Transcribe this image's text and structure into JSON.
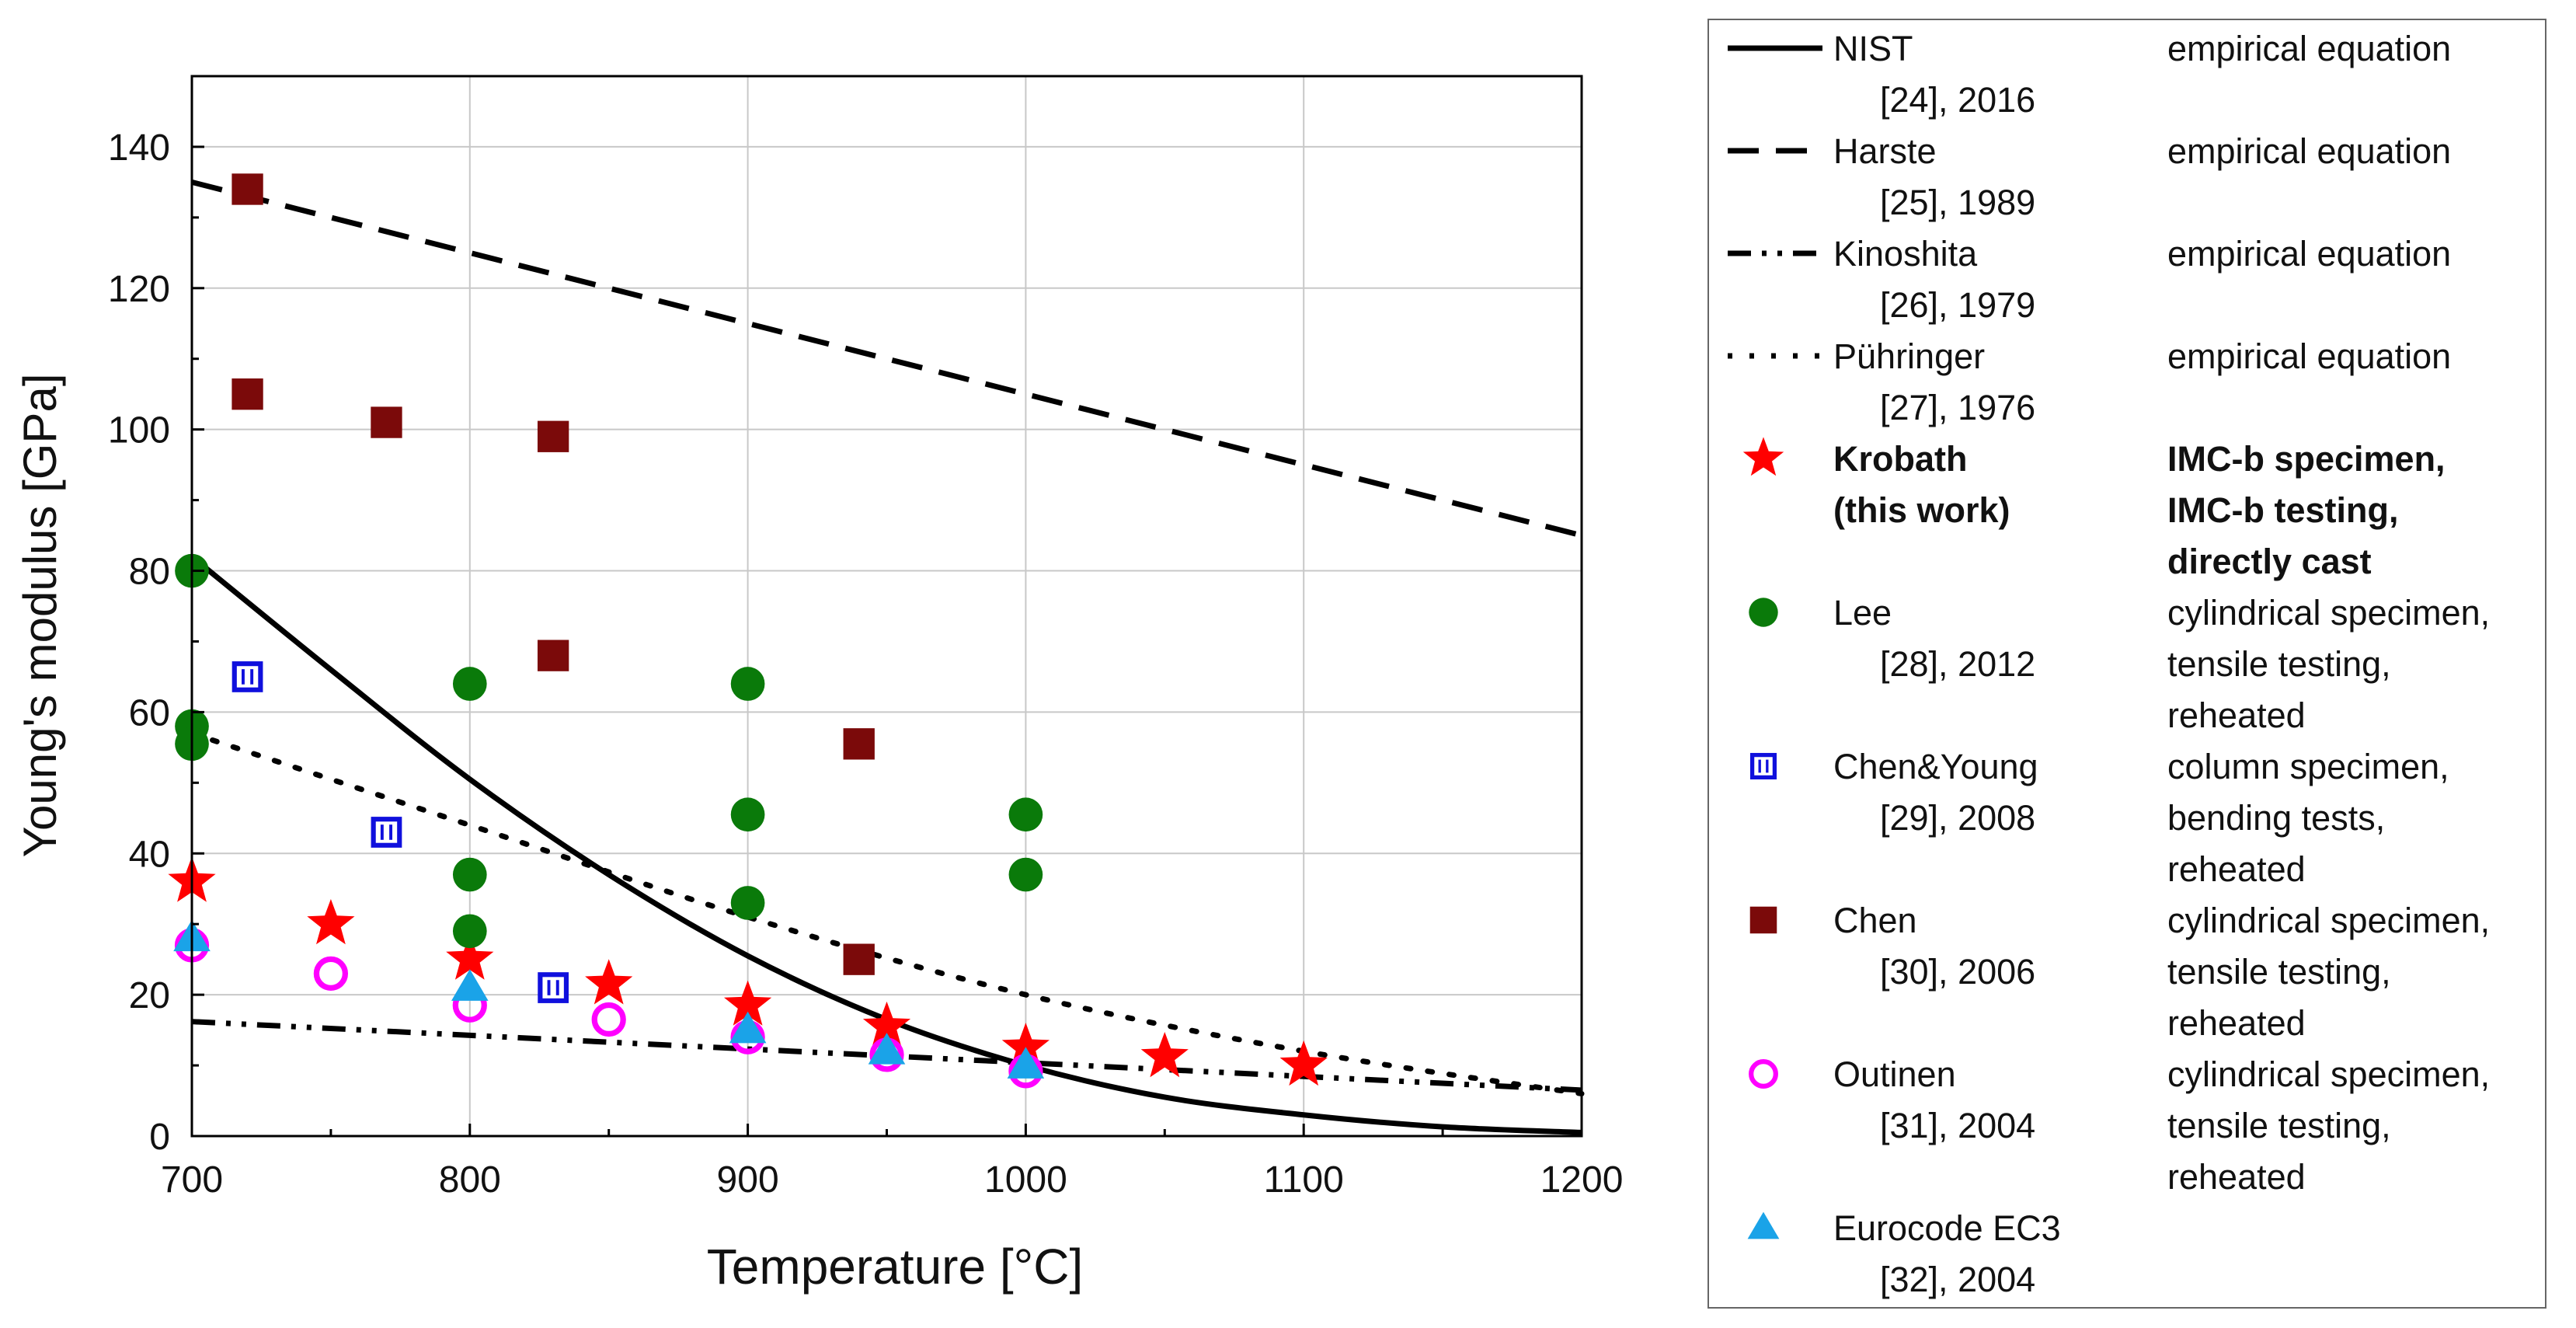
{
  "chart_data": {
    "type": "scatter",
    "xlabel": "Temperature [°C]",
    "ylabel": "Young's modulus [GPa]",
    "xlim": [
      700,
      1200
    ],
    "ylim": [
      0,
      150
    ],
    "xticks": [
      700,
      800,
      900,
      1000,
      1100,
      1200
    ],
    "yticks": [
      0,
      20,
      40,
      60,
      80,
      100,
      120,
      140
    ],
    "grid": true,
    "legend_position": "right, outside plot",
    "series": [
      {
        "name": "NIST",
        "ref": "[24], 2016",
        "desc": [
          "empirical equation"
        ],
        "kind": "line",
        "style": "solid",
        "color": "#000000",
        "x": [
          700,
          750,
          800,
          850,
          900,
          950,
          1000,
          1050,
          1100,
          1150,
          1200
        ],
        "y": [
          82,
          66,
          50.5,
          37,
          25.5,
          16.5,
          10,
          5.5,
          3,
          1.3,
          0.5
        ]
      },
      {
        "name": "Harste",
        "ref": "[25], 1989",
        "desc": [
          "empirical equation"
        ],
        "kind": "line",
        "style": "dash",
        "color": "#000000",
        "x": [
          700,
          1200
        ],
        "y": [
          135,
          85
        ]
      },
      {
        "name": "Kinoshita",
        "ref": "[26], 1979",
        "desc": [
          "empirical equation"
        ],
        "kind": "line",
        "style": "dashdotdot",
        "color": "#000000",
        "x": [
          700,
          1200
        ],
        "y": [
          16.2,
          6.5
        ]
      },
      {
        "name": "Pühringer",
        "ref": "[27], 1976",
        "desc": [
          "empirical equation"
        ],
        "kind": "line",
        "style": "dot",
        "color": "#000000",
        "x": [
          700,
          800,
          900,
          1000,
          1100,
          1200
        ],
        "y": [
          57,
          44,
          31,
          20,
          12,
          6
        ]
      },
      {
        "name": "Krobath",
        "ref": "(this work)",
        "desc": [
          "IMC-b specimen,",
          "IMC-b testing,",
          "directly cast"
        ],
        "bold": true,
        "kind": "marker",
        "marker": "star",
        "color": "#ff0000",
        "x": [
          700,
          750,
          800,
          850,
          900,
          950,
          1000,
          1050,
          1100
        ],
        "y": [
          36,
          30,
          25,
          21.5,
          18.5,
          15.5,
          12.5,
          11.2,
          10
        ]
      },
      {
        "name": "Lee",
        "ref": "[28], 2012",
        "desc": [
          "cylindrical specimen,",
          "tensile testing,",
          "reheated"
        ],
        "kind": "marker",
        "marker": "circle",
        "color": "#0a7a0a",
        "x": [
          700,
          700,
          700,
          800,
          800,
          800,
          900,
          900,
          900,
          1000,
          1000
        ],
        "y": [
          80,
          58,
          55.5,
          64,
          37,
          29,
          64,
          45.5,
          33,
          45.5,
          37
        ]
      },
      {
        "name": "Chen&Young",
        "ref": "[29], 2008",
        "desc": [
          "column specimen,",
          "bending tests,",
          "reheated"
        ],
        "kind": "marker",
        "marker": "square-open",
        "color": "#1010dd",
        "x": [
          720,
          770,
          830
        ],
        "y": [
          65,
          43,
          21
        ]
      },
      {
        "name": "Chen",
        "ref": "[30], 2006",
        "desc": [
          "cylindrical specimen,",
          "tensile testing,",
          "reheated"
        ],
        "kind": "marker",
        "marker": "square",
        "color": "#7b0a0a",
        "x": [
          720,
          720,
          770,
          830,
          830,
          940,
          940
        ],
        "y": [
          134,
          105,
          101,
          99,
          68,
          55.5,
          25
        ]
      },
      {
        "name": "Outinen",
        "ref": "[31], 2004",
        "desc": [
          "cylindrical specimen,",
          "tensile testing,",
          "reheated"
        ],
        "kind": "marker",
        "marker": "circle-open",
        "color": "#ff00ff",
        "x": [
          700,
          750,
          800,
          850,
          900,
          950,
          1000
        ],
        "y": [
          27,
          23,
          18.5,
          16.5,
          14,
          11.5,
          9.2
        ]
      },
      {
        "name": "Eurocode EC3",
        "ref": "[32], 2004",
        "desc": [],
        "kind": "marker",
        "marker": "triangle",
        "color": "#1aa3e8",
        "x": [
          700,
          800,
          900,
          950,
          1000
        ],
        "y": [
          28,
          21,
          15,
          12,
          10
        ]
      }
    ]
  }
}
